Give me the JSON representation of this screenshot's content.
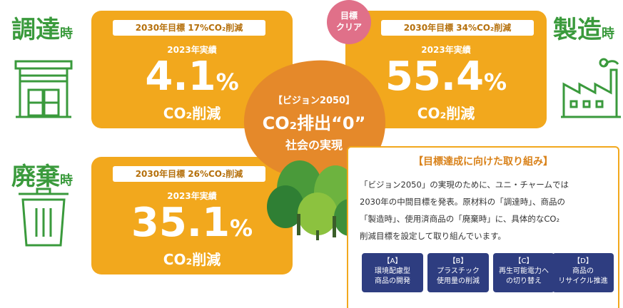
{
  "sections": [
    {
      "heading": "調達",
      "heading_suffix": "時",
      "target": "2030年目標 17%CO₂削減",
      "year_label": "2023年実績",
      "result": "4.1",
      "unit": "%",
      "result_caption": "CO₂削減"
    },
    {
      "heading": "製造",
      "heading_suffix": "時",
      "badge": [
        "目標",
        "クリア"
      ],
      "target": "2030年目標 34%CO₂削減",
      "year_label": "2023年実績",
      "result": "55.4",
      "unit": "%",
      "result_caption": "CO₂削減"
    },
    {
      "heading": "廃棄",
      "heading_suffix": "時",
      "target": "2030年目標 26%CO₂削減",
      "year_label": "2023年実績",
      "result": "35.1",
      "unit": "%",
      "result_caption": "CO₂削減"
    }
  ],
  "vision": {
    "label": "【ビジョン2050】",
    "title": "CO₂排出“0”",
    "subtitle": "社会の実現"
  },
  "panel": {
    "title": "【目標達成に向けた取り組み】",
    "lines": [
      "「ビジョン2050」の実現のために、ユニ・チャームでは",
      "2030年の中間目標を発表。原材料の「調達時」、商品の",
      "「製造時」、使用済商品の「廃棄時」に、具体的なCO₂",
      "削減目標を設定して取り組んでいます。"
    ],
    "buttons": [
      {
        "key": "【A】",
        "lines": [
          "環境配慮型",
          "商品の開発"
        ]
      },
      {
        "key": "【B】",
        "lines": [
          "プラスチック",
          "使用量の削減"
        ]
      },
      {
        "key": "【C】",
        "lines": [
          "再生可能電力へ",
          "の切り替え"
        ]
      },
      {
        "key": "【D】",
        "lines": [
          "商品の",
          "リサイクル推進"
        ]
      }
    ]
  }
}
